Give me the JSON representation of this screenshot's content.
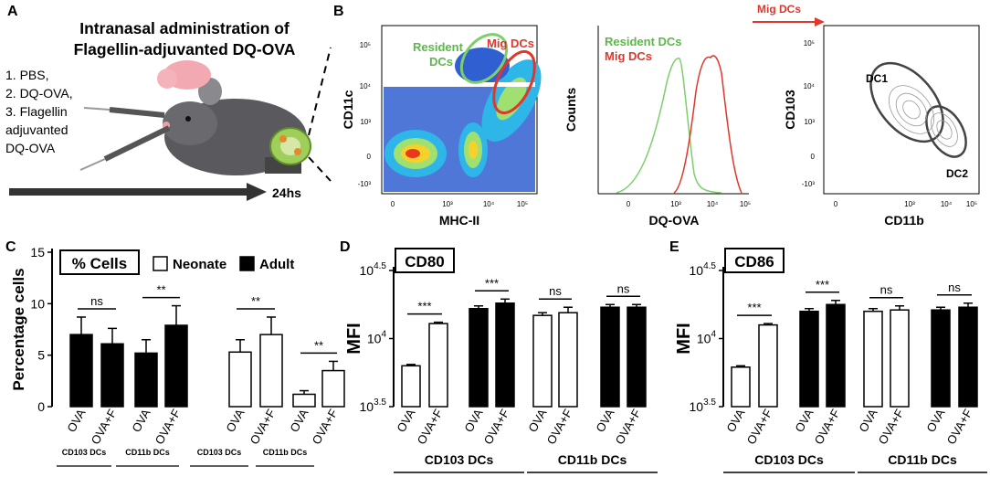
{
  "panels": {
    "A": "A",
    "B": "B",
    "C": "C",
    "D": "D",
    "E": "E"
  },
  "panel_a": {
    "title_line1": "Intranasal administration of",
    "title_line2": "Flagellin-adjuvanted DQ-OVA",
    "steps": [
      "1. PBS,",
      "2. DQ-OVA,",
      "3. Flagellin",
      "adjuvanted",
      "DQ-OVA"
    ],
    "time_label": "24hs"
  },
  "panel_b": {
    "mig_arrow_label": "Mig DCs",
    "plot1": {
      "xlabel": "MHC-II",
      "ylabel": "CD11c",
      "gate_resident_line1": "Resident",
      "gate_resident_line2": "DCs",
      "gate_mig": "Mig DCs",
      "xticks": [
        "0",
        "10³",
        "10⁴",
        "10⁵"
      ],
      "yticks": [
        "10⁵",
        "10⁴",
        "10³",
        "0",
        "-10³"
      ]
    },
    "plot2": {
      "xlabel": "DQ-OVA",
      "ylabel": "Counts",
      "legend_resident": "Resident DCs",
      "legend_mig": "Mig DCs",
      "xticks": [
        "0",
        "10³",
        "10⁴",
        "10⁵"
      ]
    },
    "plot3": {
      "xlabel": "CD11b",
      "ylabel": "CD103",
      "gate_dc1": "DC1",
      "gate_dc2": "DC2",
      "xticks": [
        "0",
        "10³",
        "10⁴",
        "10⁵"
      ],
      "yticks": [
        "10⁵",
        "10⁴",
        "10³",
        "0",
        "-10³"
      ]
    }
  },
  "colors": {
    "resident": "#7ccf6a",
    "mig": "#e0362b",
    "bar_adult": "#000000",
    "bar_neonate": "#ffffff"
  },
  "chart_data": [
    {
      "id": "C",
      "type": "bar",
      "title": "% Cells",
      "ylabel": "Percentage cells",
      "ylim": [
        0,
        15
      ],
      "yticks": [
        "0",
        "5",
        "10",
        "15"
      ],
      "legend": [
        "Neonate",
        "Adult"
      ],
      "bars": [
        {
          "group": "Adult",
          "cell": "CD103 DCs",
          "cond": "OVA",
          "value": 7.0,
          "err": 1.7
        },
        {
          "group": "Adult",
          "cell": "CD103 DCs",
          "cond": "OVA+F",
          "value": 6.1,
          "err": 1.5
        },
        {
          "group": "Adult",
          "cell": "CD11b DCs",
          "cond": "OVA",
          "value": 5.2,
          "err": 1.3
        },
        {
          "group": "Adult",
          "cell": "CD11b DCs",
          "cond": "OVA+F",
          "value": 7.9,
          "err": 1.9
        },
        {
          "group": "Neonate",
          "cell": "CD103 DCs",
          "cond": "OVA",
          "value": 5.3,
          "err": 1.2
        },
        {
          "group": "Neonate",
          "cell": "CD103 DCs",
          "cond": "OVA+F",
          "value": 7.0,
          "err": 1.7
        },
        {
          "group": "Neonate",
          "cell": "CD11b DCs",
          "cond": "OVA",
          "value": 1.2,
          "err": 0.35
        },
        {
          "group": "Neonate",
          "cell": "CD11b DCs",
          "cond": "OVA+F",
          "value": 3.5,
          "err": 0.9
        }
      ],
      "significance": [
        "ns",
        "**",
        "**",
        "**"
      ],
      "cell_labels": [
        "CD103 DCs",
        "CD11b DCs",
        "CD103 DCs",
        "CD11b DCs"
      ]
    },
    {
      "id": "D",
      "type": "bar",
      "title": "CD80",
      "ylabel": "MFI",
      "yscale": "log10",
      "ylim": [
        3.5,
        4.5
      ],
      "yticks": [
        {
          "base": "10",
          "exp": "4.5"
        },
        {
          "base": "10",
          "exp": "4"
        },
        {
          "base": "10",
          "exp": "3.5"
        }
      ],
      "bars": [
        {
          "group": "Neonate",
          "cell": "CD103 DCs",
          "cond": "OVA",
          "value": 3.8,
          "err": 0.01
        },
        {
          "group": "Neonate",
          "cell": "CD103 DCs",
          "cond": "OVA+F",
          "value": 4.11,
          "err": 0.01
        },
        {
          "group": "Adult",
          "cell": "CD103 DCs",
          "cond": "OVA",
          "value": 4.22,
          "err": 0.02
        },
        {
          "group": "Adult",
          "cell": "CD103 DCs",
          "cond": "OVA+F",
          "value": 4.26,
          "err": 0.03
        },
        {
          "group": "Neonate",
          "cell": "CD11b DCs",
          "cond": "OVA",
          "value": 4.17,
          "err": 0.02
        },
        {
          "group": "Neonate",
          "cell": "CD11b DCs",
          "cond": "OVA+F",
          "value": 4.19,
          "err": 0.04
        },
        {
          "group": "Adult",
          "cell": "CD11b DCs",
          "cond": "OVA",
          "value": 4.23,
          "err": 0.02
        },
        {
          "group": "Adult",
          "cell": "CD11b DCs",
          "cond": "OVA+F",
          "value": 4.23,
          "err": 0.02
        }
      ],
      "significance": [
        "***",
        "***",
        "ns",
        "ns"
      ],
      "cell_labels": [
        "CD103 DCs",
        "CD11b DCs"
      ]
    },
    {
      "id": "E",
      "type": "bar",
      "title": "CD86",
      "ylabel": "MFI",
      "yscale": "log10",
      "ylim": [
        3.5,
        4.5
      ],
      "yticks": [
        {
          "base": "10",
          "exp": "4.5"
        },
        {
          "base": "10",
          "exp": "4"
        },
        {
          "base": "10",
          "exp": "3.5"
        }
      ],
      "bars": [
        {
          "group": "Neonate",
          "cell": "CD103 DCs",
          "cond": "OVA",
          "value": 3.79,
          "err": 0.01
        },
        {
          "group": "Neonate",
          "cell": "CD103 DCs",
          "cond": "OVA+F",
          "value": 4.1,
          "err": 0.01
        },
        {
          "group": "Adult",
          "cell": "CD103 DCs",
          "cond": "OVA",
          "value": 4.2,
          "err": 0.02
        },
        {
          "group": "Adult",
          "cell": "CD103 DCs",
          "cond": "OVA+F",
          "value": 4.25,
          "err": 0.03
        },
        {
          "group": "Neonate",
          "cell": "CD11b DCs",
          "cond": "OVA",
          "value": 4.2,
          "err": 0.02
        },
        {
          "group": "Neonate",
          "cell": "CD11b DCs",
          "cond": "OVA+F",
          "value": 4.21,
          "err": 0.03
        },
        {
          "group": "Adult",
          "cell": "CD11b DCs",
          "cond": "OVA",
          "value": 4.21,
          "err": 0.02
        },
        {
          "group": "Adult",
          "cell": "CD11b DCs",
          "cond": "OVA+F",
          "value": 4.23,
          "err": 0.03
        }
      ],
      "significance": [
        "***",
        "***",
        "ns",
        "ns"
      ],
      "cell_labels": [
        "CD103 DCs",
        "CD11b DCs"
      ]
    }
  ]
}
